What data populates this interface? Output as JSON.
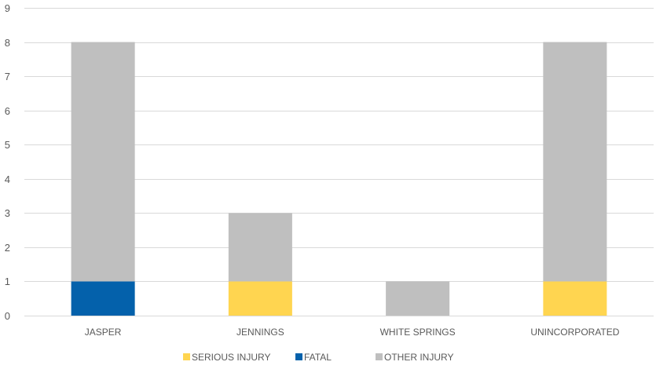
{
  "chart_data": {
    "type": "bar",
    "stacked": true,
    "categories": [
      "JASPER",
      "JENNINGS",
      "WHITE SPRINGS",
      "UNINCORPORATED"
    ],
    "series": [
      {
        "name": "SERIOUS INJURY",
        "values": [
          0,
          1,
          0,
          1
        ],
        "color": "#FFD550"
      },
      {
        "name": "FATAL",
        "values": [
          1,
          0,
          0,
          0
        ],
        "color": "#0461AB"
      },
      {
        "name": "OTHER INJURY",
        "values": [
          7,
          2,
          1,
          7
        ],
        "color": "#BFBFBF"
      }
    ],
    "ylim": [
      0,
      9
    ],
    "yticks": [
      0,
      1,
      2,
      3,
      4,
      5,
      6,
      7,
      8,
      9
    ],
    "grid": true,
    "legend": "bottom",
    "grid_color": "#D9D9D9"
  }
}
